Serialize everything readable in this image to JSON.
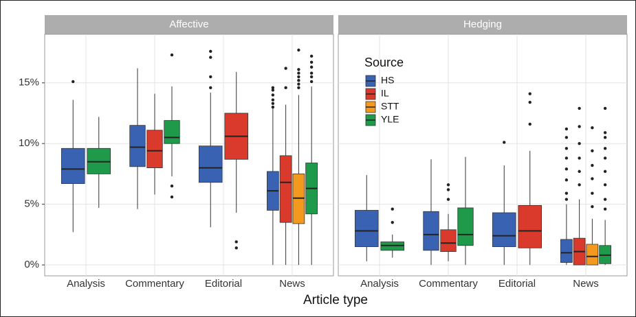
{
  "chart_data": {
    "type": "box",
    "x_label": "Article type",
    "categories": [
      "Analysis",
      "Commentary",
      "Editorial",
      "News"
    ],
    "legend_title": "Source",
    "legend_series": [
      {
        "name": "HS",
        "color": "#3a62b3"
      },
      {
        "name": "IL",
        "color": "#d93a2b"
      },
      {
        "name": "STT",
        "color": "#f39a1e"
      },
      {
        "name": "YLE",
        "color": "#1f9a4a"
      }
    ],
    "ylim": [
      -0.9,
      19
    ],
    "yticks": [
      {
        "value": 0,
        "label": "0%"
      },
      {
        "value": 5,
        "label": "5%"
      },
      {
        "value": 10,
        "label": "10%"
      },
      {
        "value": 15,
        "label": "15%"
      }
    ],
    "grid": true,
    "facets": [
      {
        "title": "Affective",
        "series": [
          {
            "values": [
              {
                "whisker_low": 2.7,
                "q1": 6.7,
                "median": 7.9,
                "q3": 9.6,
                "whisker_high": 13.6,
                "outliers": [
                  15.1
                ]
              },
              {
                "whisker_low": 4.6,
                "q1": 8.1,
                "median": 9.7,
                "q3": 11.5,
                "whisker_high": 16.2,
                "outliers": []
              },
              {
                "whisker_low": 3.1,
                "q1": 6.8,
                "median": 8.0,
                "q3": 9.8,
                "whisker_high": 14.2,
                "outliers": [
                  17.6,
                  17.1,
                  15.5,
                  14.6
                ]
              },
              {
                "whisker_low": 0,
                "q1": 4.5,
                "median": 6.1,
                "q3": 7.7,
                "whisker_high": 12.9,
                "outliers": [
                  14.6,
                  14.4,
                  14.0,
                  13.6,
                  13.3,
                  13.0
                ]
              }
            ]
          },
          {
            "values": [
              null,
              {
                "whisker_low": 5.8,
                "q1": 8.0,
                "median": 9.4,
                "q3": 11.1,
                "whisker_high": 14.1,
                "outliers": []
              },
              {
                "whisker_low": 4.3,
                "q1": 8.7,
                "median": 10.6,
                "q3": 12.5,
                "whisker_high": 15.9,
                "outliers": [
                  1.9,
                  1.4
                ]
              },
              {
                "whisker_low": 0,
                "q1": 3.5,
                "median": 6.8,
                "q3": 9.0,
                "whisker_high": 13.2,
                "outliers": [
                  16.2,
                  14.6
                ]
              }
            ]
          },
          {
            "values": [
              null,
              null,
              null,
              {
                "whisker_low": 0,
                "q1": 3.4,
                "median": 5.5,
                "q3": 7.5,
                "whisker_high": 14.0,
                "outliers": [
                  17.7,
                  16.1,
                  15.8,
                  15.5,
                  15.2,
                  14.9,
                  14.6
                ]
              }
            ]
          },
          {
            "values": [
              {
                "whisker_low": 4.7,
                "q1": 7.5,
                "median": 8.5,
                "q3": 9.6,
                "whisker_high": 12.2,
                "outliers": []
              },
              {
                "whisker_low": 7.3,
                "q1": 10.0,
                "median": 10.5,
                "q3": 11.9,
                "whisker_high": 14.7,
                "outliers": [
                  17.3,
                  6.5,
                  5.6
                ]
              },
              null,
              {
                "whisker_low": 0,
                "q1": 4.2,
                "median": 6.3,
                "q3": 8.4,
                "whisker_high": 14.7,
                "outliers": [
                  17.2,
                  16.7,
                  16.3,
                  15.8,
                  15.5,
                  15.1
                ]
              }
            ]
          }
        ]
      },
      {
        "title": "Hedging",
        "series": [
          {
            "values": [
              {
                "whisker_low": 0.3,
                "q1": 1.5,
                "median": 2.8,
                "q3": 4.5,
                "whisker_high": 7.4,
                "outliers": []
              },
              {
                "whisker_low": 0,
                "q1": 1.2,
                "median": 2.5,
                "q3": 4.4,
                "whisker_high": 8.7,
                "outliers": []
              },
              {
                "whisker_low": 0,
                "q1": 1.5,
                "median": 2.4,
                "q3": 4.3,
                "whisker_high": 8.2,
                "outliers": [
                  10.1
                ]
              },
              {
                "whisker_low": 0,
                "q1": 0.2,
                "median": 1.0,
                "q3": 2.1,
                "whisker_high": 5.0,
                "outliers": [
                  11.2,
                  10.5,
                  9.6,
                  8.8,
                  7.9,
                  7.0,
                  5.9,
                  5.4
                ]
              }
            ]
          },
          {
            "values": [
              null,
              {
                "whisker_low": 0.3,
                "q1": 1.1,
                "median": 1.8,
                "q3": 2.9,
                "whisker_high": 4.2,
                "outliers": [
                  6.6,
                  6.2,
                  5.4
                ]
              },
              {
                "whisker_low": 0,
                "q1": 1.4,
                "median": 2.8,
                "q3": 4.9,
                "whisker_high": 9.4,
                "outliers": [
                  14.1,
                  13.4,
                  11.6
                ]
              },
              {
                "whisker_low": 0,
                "q1": 0,
                "median": 1.1,
                "q3": 2.2,
                "whisker_high": 5.4,
                "outliers": [
                  12.9,
                  11.4,
                  10.0,
                  8.8,
                  7.7,
                  6.6
                ]
              }
            ]
          },
          {
            "values": [
              null,
              null,
              null,
              {
                "whisker_low": 0,
                "q1": 0,
                "median": 0.7,
                "q3": 1.7,
                "whisker_high": 3.8,
                "outliers": [
                  11.3,
                  9.4,
                  8.2,
                  7.1,
                  5.9,
                  4.8
                ]
              }
            ]
          },
          {
            "values": [
              {
                "whisker_low": 0.6,
                "q1": 1.2,
                "median": 1.6,
                "q3": 1.9,
                "whisker_high": 2.5,
                "outliers": [
                  4.6,
                  3.5
                ]
              },
              {
                "whisker_low": 0,
                "q1": 1.6,
                "median": 2.5,
                "q3": 4.7,
                "whisker_high": 8.9,
                "outliers": []
              },
              null,
              {
                "whisker_low": 0,
                "q1": 0.1,
                "median": 0.8,
                "q3": 1.6,
                "whisker_high": 3.7,
                "outliers": [
                  12.9,
                  10.9,
                  10.5,
                  9.6,
                  8.8,
                  7.7,
                  6.6,
                  5.4,
                  4.6
                ]
              }
            ]
          }
        ]
      }
    ]
  }
}
